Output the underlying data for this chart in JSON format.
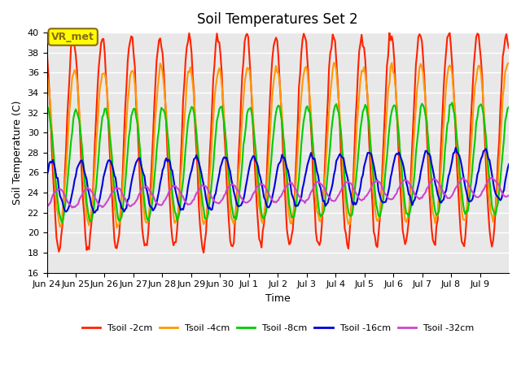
{
  "title": "Soil Temperatures Set 2",
  "xlabel": "Time",
  "ylabel": "Soil Temperature (C)",
  "ylim": [
    16,
    40
  ],
  "yticks": [
    16,
    18,
    20,
    22,
    24,
    26,
    28,
    30,
    32,
    34,
    36,
    38,
    40
  ],
  "background_color": "#e8e8e8",
  "fig_background": "#ffffff",
  "grid_color": "#ffffff",
  "annotation_text": "VR_met",
  "annotation_bg": "#ffff00",
  "annotation_border": "#8B6914",
  "series": [
    {
      "label": "Tsoil -2cm",
      "color": "#ff2200",
      "lw": 1.5
    },
    {
      "label": "Tsoil -4cm",
      "color": "#ff9900",
      "lw": 1.5
    },
    {
      "label": "Tsoil -8cm",
      "color": "#00cc00",
      "lw": 1.5
    },
    {
      "label": "Tsoil -16cm",
      "color": "#0000dd",
      "lw": 1.5
    },
    {
      "label": "Tsoil -32cm",
      "color": "#cc44cc",
      "lw": 1.5
    }
  ],
  "num_days": 16,
  "points_per_day": 24,
  "x_tick_labels": [
    "Jun 24",
    "Jun 25",
    "Jun 26",
    "Jun 27",
    "Jun 28",
    "Jun 29",
    "Jun 30",
    "Jul 1",
    "Jul 2",
    "Jul 3",
    "Jul 4",
    "Jul 5",
    "Jul 6",
    "Jul 7",
    "Jul 8",
    "Jul 9"
  ],
  "x_tick_days": [
    0,
    1,
    2,
    3,
    4,
    5,
    6,
    7,
    8,
    9,
    10,
    11,
    12,
    13,
    14,
    15
  ]
}
